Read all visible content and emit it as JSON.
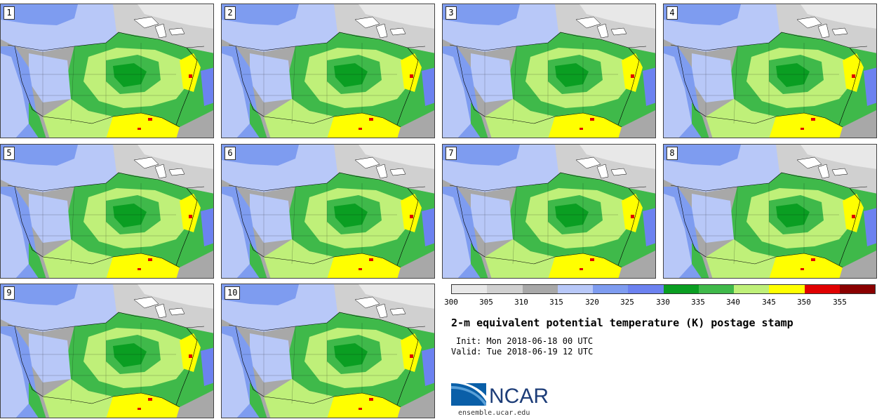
{
  "stamps": [
    {
      "label": "1"
    },
    {
      "label": "2"
    },
    {
      "label": "3"
    },
    {
      "label": "4"
    },
    {
      "label": "5"
    },
    {
      "label": "6"
    },
    {
      "label": "7"
    },
    {
      "label": "8"
    },
    {
      "label": "9"
    },
    {
      "label": "10"
    }
  ],
  "colorbar": {
    "colors": [
      "#e8e8e8",
      "#d0d0d0",
      "#a8a8a8",
      "#b8c8f8",
      "#7e9cf0",
      "#6c82f0",
      "#0a9e22",
      "#3fb94a",
      "#bff079",
      "#ffff00",
      "#e00000",
      "#8a0000"
    ],
    "ticks": [
      "300",
      "305",
      "310",
      "315",
      "320",
      "325",
      "330",
      "335",
      "340",
      "345",
      "350",
      "355"
    ]
  },
  "title": "2-m equivalent potential temperature (K) postage stamp",
  "init": "Init: Mon 2018-06-18 00 UTC",
  "valid": "Valid: Tue 2018-06-19 12 UTC",
  "logo": {
    "text": "NCAR",
    "site": "ensemble.ucar.edu"
  }
}
